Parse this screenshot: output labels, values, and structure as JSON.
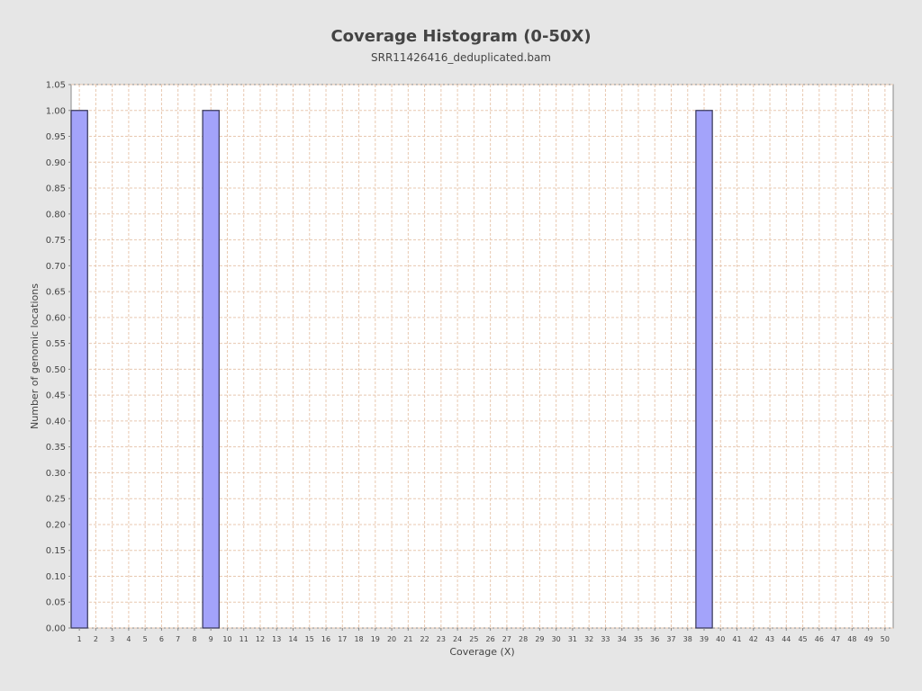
{
  "chart_data": {
    "type": "bar",
    "title": "Coverage Histogram (0-50X)",
    "subtitle": "SRR11426416_deduplicated.bam",
    "xlabel": "Coverage (X)",
    "ylabel": "Number of genomic locations",
    "xlim": [
      0.5,
      50.5
    ],
    "ylim": [
      0,
      1.05
    ],
    "x_ticks": [
      1,
      2,
      3,
      4,
      5,
      6,
      7,
      8,
      9,
      10,
      11,
      12,
      13,
      14,
      15,
      16,
      17,
      18,
      19,
      20,
      21,
      22,
      23,
      24,
      25,
      26,
      27,
      28,
      29,
      30,
      31,
      32,
      33,
      34,
      35,
      36,
      37,
      38,
      39,
      40,
      41,
      42,
      43,
      44,
      45,
      46,
      47,
      48,
      49,
      50
    ],
    "y_ticks": [
      "0.00",
      "0.05",
      "0.10",
      "0.15",
      "0.20",
      "0.25",
      "0.30",
      "0.35",
      "0.40",
      "0.45",
      "0.50",
      "0.55",
      "0.60",
      "0.65",
      "0.70",
      "0.75",
      "0.80",
      "0.85",
      "0.90",
      "0.95",
      "1.00",
      "1.05"
    ],
    "grid": true,
    "bar_color": "#a3a3fa",
    "bar_edge_color": "#333355",
    "series": [
      {
        "x": [
          1,
          9,
          39
        ],
        "values": [
          1.0,
          1.0,
          1.0
        ]
      }
    ]
  }
}
